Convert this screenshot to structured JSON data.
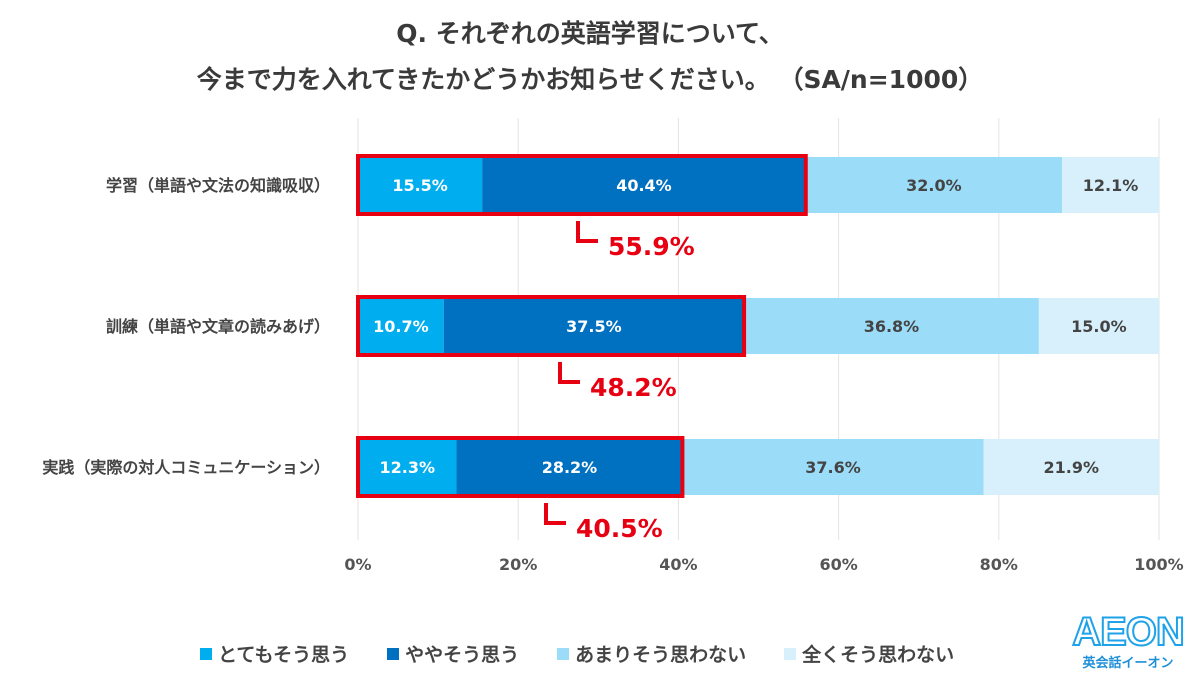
{
  "chart_data": {
    "type": "bar",
    "stacked": true,
    "orientation": "horizontal",
    "title": "Q. それぞれの英語学習について、",
    "subtitle": "今まで力を入れてきたかどうかお知らせください。 （SA/n=1000）",
    "categories": [
      "学習（単語や文法の知識吸収）",
      "訓練（単語や文章の読みあげ）",
      "実践（実際の対人コミュニケーション）"
    ],
    "series": [
      {
        "name": "とてもそう思う",
        "color": "#00aeef",
        "values": [
          15.5,
          10.7,
          12.3
        ],
        "labels": [
          "15.5%",
          "10.7%",
          "12.3%"
        ]
      },
      {
        "name": "ややそう思う",
        "color": "#0070c0",
        "values": [
          40.4,
          37.5,
          28.2
        ],
        "labels": [
          "40.4%",
          "37.5%",
          "28.2%"
        ]
      },
      {
        "name": "あまりそう思わない",
        "color": "#9bdcf8",
        "values": [
          32.0,
          36.8,
          37.6
        ],
        "labels": [
          "32.0%",
          "36.8%",
          "37.6%"
        ]
      },
      {
        "name": "全くそう思わない",
        "color": "#d7f0fc",
        "values": [
          12.1,
          15.0,
          21.9
        ],
        "labels": [
          "12.1%",
          "15.0%",
          "21.9%"
        ]
      }
    ],
    "annotations": [
      {
        "text": "55.9%",
        "value": 55.9
      },
      {
        "text": "48.2%",
        "value": 48.2
      },
      {
        "text": "40.5%",
        "value": 40.5
      }
    ],
    "xlim": [
      0,
      100
    ],
    "xticks": [
      "0%",
      "20%",
      "40%",
      "60%",
      "80%",
      "100%"
    ],
    "grid": true,
    "legend_position": "bottom",
    "highlight_color": "#e60012"
  },
  "logo": {
    "text": "AEON",
    "sub": "英会話イーオン"
  }
}
